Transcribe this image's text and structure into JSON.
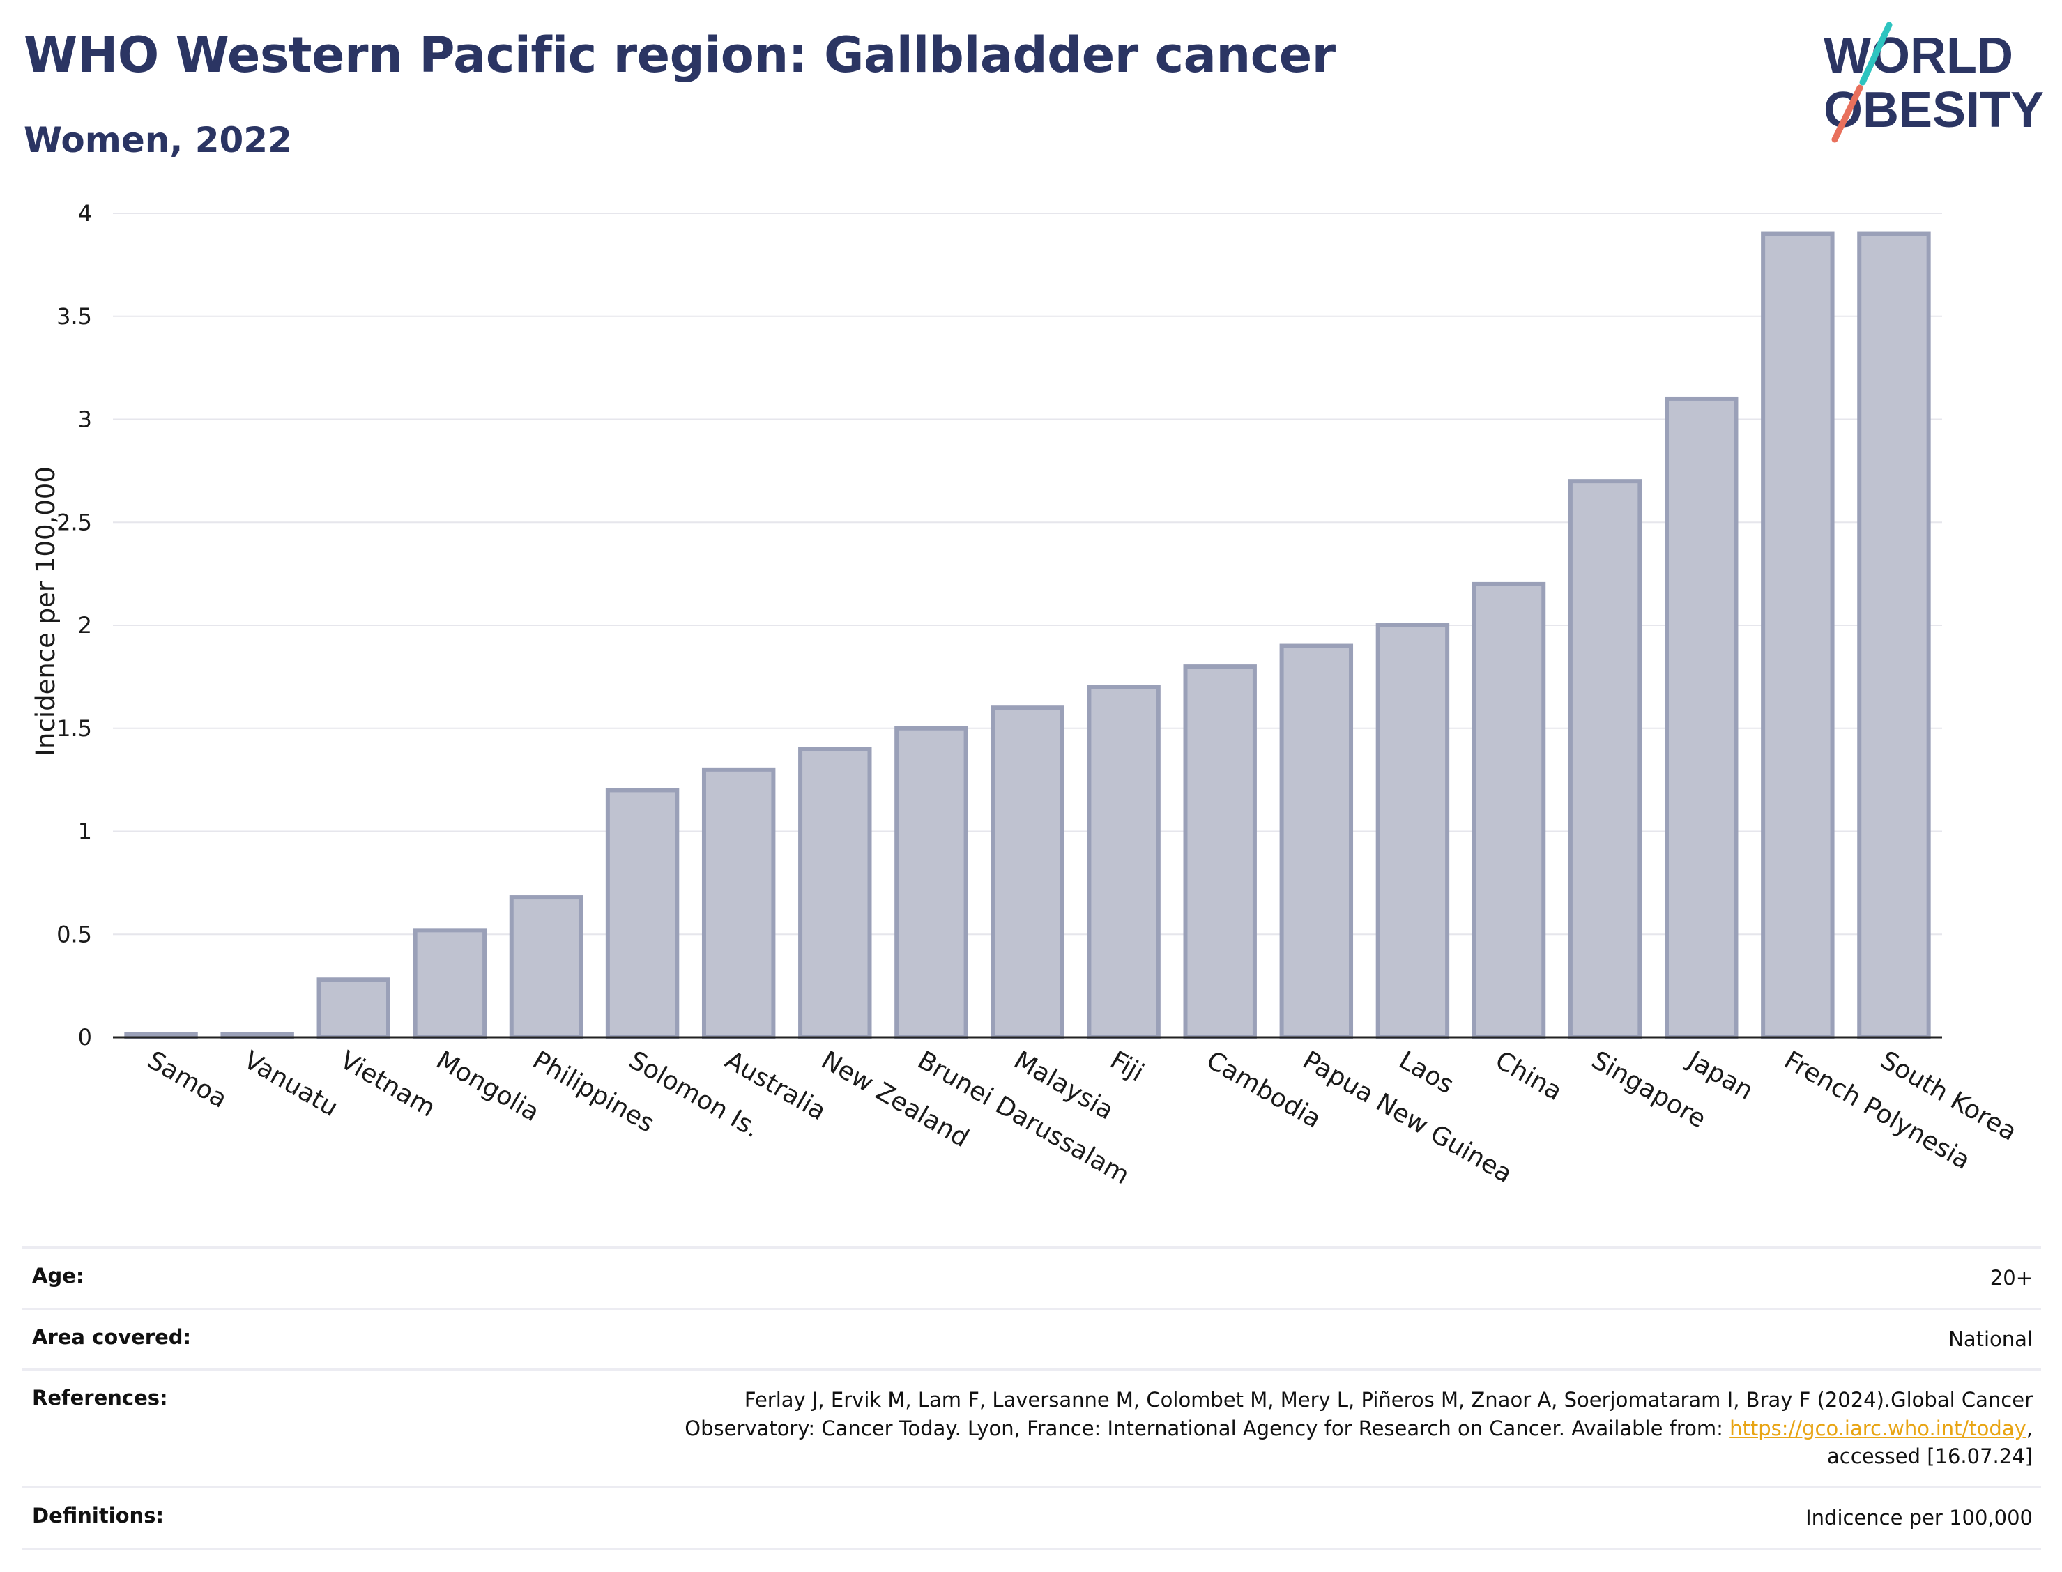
{
  "header": {
    "title": "WHO Western Pacific region: Gallbladder cancer",
    "subtitle": "Women, 2022"
  },
  "logo": {
    "line1": "WORLD",
    "line2": "OBESITY",
    "accent_teal": "#2ec4c0",
    "accent_coral": "#e8705c",
    "text_color": "#2b3563"
  },
  "colors": {
    "bar_fill": "#bfc2d0",
    "bar_stroke": "#9aa0b8",
    "title": "#2b3563",
    "grid": "#e6e6ec",
    "link": "#e8a413"
  },
  "chart_data": {
    "type": "bar",
    "title": "WHO Western Pacific region: Gallbladder cancer",
    "subtitle": "Women, 2022",
    "xlabel": "",
    "ylabel": "Incidence per 100,000",
    "ylim": [
      0,
      4
    ],
    "yticks": [
      "0",
      "0.5",
      "1",
      "1.5",
      "2",
      "2.5",
      "3",
      "3.5",
      "4"
    ],
    "grid": true,
    "categories": [
      "Samoa",
      "Vanuatu",
      "Vietnam",
      "Mongolia",
      "Philippines",
      "Solomon Is.",
      "Australia",
      "New Zealand",
      "Brunei Darussalam",
      "Malaysia",
      "Fiji",
      "Cambodia",
      "Papua New Guinea",
      "Laos",
      "China",
      "Singapore",
      "Japan",
      "French Polynesia",
      "South Korea"
    ],
    "values": [
      0.0,
      0.0,
      0.28,
      0.52,
      0.68,
      1.2,
      1.3,
      1.4,
      1.5,
      1.6,
      1.7,
      1.8,
      1.9,
      2.0,
      2.2,
      2.7,
      3.1,
      3.9,
      3.9
    ]
  },
  "meta": {
    "age_label": "Age:",
    "age_value": "20+",
    "area_label": "Area covered:",
    "area_value": "National",
    "references_label": "References:",
    "references_line1": "Ferlay J, Ervik M, Lam F, Laversanne M, Colombet M, Mery L, Piñeros M, Znaor A, Soerjomataram I, Bray F (2024).Global Cancer",
    "references_line2_pre": "Observatory: Cancer Today. Lyon, France: International Agency for Research on Cancer. Available from: ",
    "references_link": "https://gco.iarc.who.int/today",
    "references_line2_post": ",",
    "references_line3": "accessed [16.07.24]",
    "definitions_label": "Definitions:",
    "definitions_value": "Indicence per 100,000"
  }
}
